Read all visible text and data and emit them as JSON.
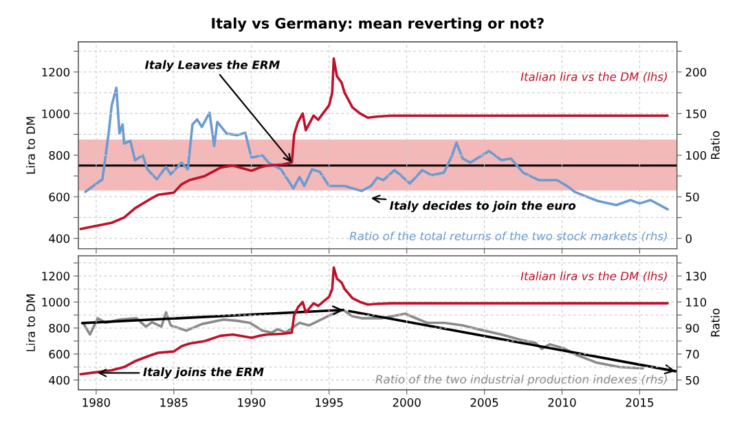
{
  "chart_data": [
    {
      "type": "line",
      "title": "Italy vs Germany: mean reverting or not?",
      "ylabel": "Lira to DM",
      "y2label": "Ratio",
      "xlim": [
        1978.85,
        2017.4
      ],
      "xticks": [
        1980,
        1985,
        1990,
        1995,
        2000,
        2005,
        2010,
        2015
      ],
      "ylim": [
        350,
        1345
      ],
      "yticks": [
        400,
        {
          "value": 500,
          "label": null
        },
        600,
        {
          "value": 700,
          "label": null
        },
        800,
        {
          "value": 900,
          "label": null
        },
        1000,
        {
          "value": 1100,
          "label": null
        },
        1200,
        {
          "value": 1300,
          "label": null
        }
      ],
      "y2lim": [
        -12.5,
        236.25
      ],
      "y2ticks": [
        0,
        {
          "value": 25,
          "label": null
        },
        50,
        {
          "value": 75,
          "label": null
        },
        100,
        {
          "value": 125,
          "label": null
        },
        150,
        {
          "value": 175,
          "label": null
        },
        200,
        {
          "value": 225,
          "label": null
        }
      ],
      "grid": true,
      "tick_labels": "y",
      "bands": [
        {
          "axis": "y2",
          "from": 57.5,
          "to": 118.75,
          "color": "#f4b8b8"
        }
      ],
      "ref_lines": [
        {
          "axis": "y2",
          "value": 87.5,
          "color": "#000000"
        }
      ],
      "annotations": [
        {
          "text": "Italy Leaves the ERM",
          "x": 1992.6,
          "y": 765
        },
        "Italy decides to join the euro"
      ],
      "series": [
        {
          "name": "Italian lira vs the DM (lhs)",
          "color": "#c0102a",
          "x": [
            1979.0,
            1980.0,
            1981.0,
            1981.8,
            1982.5,
            1983.5,
            1984.0,
            1985.0,
            1985.5,
            1986.0,
            1987.0,
            1988.0,
            1988.8,
            1989.5,
            1990.0,
            1990.5,
            1991.0,
            1992.0,
            1992.6,
            1992.75,
            1993.0,
            1993.3,
            1993.5,
            1994.0,
            1994.3,
            1994.6,
            1995.0,
            1995.2,
            1995.3,
            1995.5,
            1995.8,
            1996.0,
            1996.5,
            1997.0,
            1997.5,
            1998.0,
            1999.0,
            2016.8
          ],
          "values": [
            445,
            460,
            475,
            500,
            545,
            590,
            610,
            620,
            660,
            680,
            700,
            740,
            750,
            735,
            725,
            740,
            750,
            755,
            765,
            900,
            960,
            1000,
            920,
            990,
            970,
            1000,
            1040,
            1100,
            1265,
            1180,
            1150,
            1100,
            1030,
            1000,
            980,
            985,
            990,
            990
          ]
        },
        {
          "name": "Ratio of the total returns of the two stock markets (rhs)",
          "color": "#6a9bd1",
          "axis": "y2",
          "x": [
            1979.3,
            1980.4,
            1980.8,
            1981.0,
            1981.3,
            1981.5,
            1981.7,
            1981.8,
            1982.2,
            1982.5,
            1983.0,
            1983.3,
            1983.9,
            1984.5,
            1984.8,
            1985.5,
            1985.9,
            1986.2,
            1986.5,
            1986.8,
            1987.3,
            1987.6,
            1987.8,
            1988.4,
            1989.1,
            1989.6,
            1990.0,
            1990.7,
            1991.1,
            1991.9,
            1992.7,
            1993.1,
            1993.4,
            1993.9,
            1994.4,
            1995.0,
            1996.0,
            1997.1,
            1997.7,
            1998.1,
            1998.5,
            1999.2,
            1999.6,
            2000.2,
            2001.0,
            2001.6,
            2002.4,
            2002.9,
            2003.2,
            2003.6,
            2004.1,
            2005.3,
            2006.1,
            2006.7,
            2007.5,
            2008.5,
            2009.7,
            2010.4,
            2010.8,
            2011.6,
            2012.3,
            2013.5,
            2014.4,
            2015.0,
            2015.7,
            2016.8
          ],
          "values": [
            56,
            71,
            126,
            160,
            181,
            126,
            137,
            114,
            117,
            94,
            100,
            83,
            71,
            86,
            77,
            91,
            83,
            137,
            143,
            134,
            151,
            111,
            140,
            126,
            124,
            127,
            97,
            100,
            91,
            83,
            60,
            74,
            63,
            83,
            80,
            63,
            63,
            57,
            63,
            73,
            70,
            82,
            76,
            66,
            82,
            76,
            79,
            99,
            115,
            96,
            91,
            105,
            94,
            96,
            79,
            70,
            70,
            62,
            56,
            50,
            45,
            40,
            46,
            42,
            46,
            35
          ]
        }
      ]
    },
    {
      "type": "line",
      "ylabel": "Lira to DM",
      "y2label": "Ratio",
      "xlim": [
        1978.85,
        2017.4
      ],
      "xticks": [
        1980,
        1985,
        1990,
        1995,
        2000,
        2005,
        2010,
        2015
      ],
      "ylim": [
        325,
        1355
      ],
      "yticks": [
        400,
        {
          "value": 500,
          "label": null
        },
        600,
        {
          "value": 700,
          "label": null
        },
        800,
        {
          "value": 900,
          "label": null
        },
        1000,
        {
          "value": 1100,
          "label": null
        },
        1200,
        {
          "value": 1300,
          "label": null
        }
      ],
      "y2lim": [
        42.5,
        145.5
      ],
      "y2ticks": [
        50,
        {
          "value": 60,
          "label": null
        },
        70,
        {
          "value": 80,
          "label": null
        },
        90,
        {
          "value": 100,
          "label": null
        },
        110,
        {
          "value": 120,
          "label": null
        },
        130,
        {
          "value": 140,
          "label": null
        }
      ],
      "grid": true,
      "annotations": [
        "Italy joins the ERM"
      ],
      "series": [
        {
          "name": "Italian lira vs the DM (lhs)",
          "color": "#c0102a",
          "x": [
            1979.0,
            1980.0,
            1981.0,
            1981.8,
            1982.5,
            1983.5,
            1984.0,
            1985.0,
            1985.5,
            1986.0,
            1987.0,
            1988.0,
            1988.8,
            1989.5,
            1990.0,
            1990.5,
            1991.0,
            1992.0,
            1992.6,
            1992.75,
            1993.0,
            1993.3,
            1993.5,
            1994.0,
            1994.3,
            1994.6,
            1995.0,
            1995.2,
            1995.3,
            1995.5,
            1995.8,
            1996.0,
            1996.5,
            1997.0,
            1997.5,
            1998.0,
            1999.0,
            2016.8
          ],
          "values": [
            445,
            460,
            475,
            500,
            545,
            590,
            610,
            620,
            660,
            680,
            700,
            740,
            750,
            735,
            725,
            740,
            750,
            755,
            765,
            900,
            960,
            1000,
            920,
            990,
            970,
            1000,
            1040,
            1100,
            1265,
            1180,
            1150,
            1100,
            1030,
            1000,
            980,
            985,
            990,
            990
          ]
        },
        {
          "name": "Ratio of the two industrial production indexes (rhs)",
          "color": "#8a8a8a",
          "axis": "y2",
          "x": [
            1979.2,
            1979.6,
            1980.1,
            1980.6,
            1981.5,
            1982.6,
            1983.2,
            1983.6,
            1984.2,
            1984.5,
            1984.8,
            1985.8,
            1986.8,
            1988.2,
            1989.1,
            1989.9,
            1990.7,
            1991.3,
            1991.7,
            1992.2,
            1992.6,
            1993.1,
            1993.7,
            1994.9,
            1995.9,
            1996.5,
            1997.1,
            1998.4,
            1999.9,
            2001.3,
            2002.4,
            2003.6,
            2004.8,
            2006.1,
            2007.3,
            2008.3,
            2008.7,
            2009.2,
            2010.1,
            2011.0,
            2012.2,
            2013.7,
            2015.2
          ],
          "values": [
            93,
            85,
            97.5,
            94,
            96.5,
            97.5,
            91,
            94.5,
            91,
            102,
            92,
            88,
            93,
            96.5,
            95.5,
            94,
            88,
            86.5,
            89,
            86.5,
            90,
            94,
            92,
            99,
            104,
            99,
            97.5,
            97.5,
            101,
            94,
            94,
            92,
            88.5,
            85,
            81,
            78.5,
            74,
            77.5,
            74.5,
            69,
            63.5,
            60,
            59
          ]
        },
        {
          "color": "#000000",
          "axis": "y2",
          "x": [
            1979.1,
            1995.9
          ],
          "values": [
            93.8,
            103.9
          ]
        },
        {
          "color": "#000000",
          "axis": "y2",
          "x": [
            1996.3,
            2017.3
          ],
          "values": [
            103,
            56.8
          ]
        }
      ]
    }
  ]
}
